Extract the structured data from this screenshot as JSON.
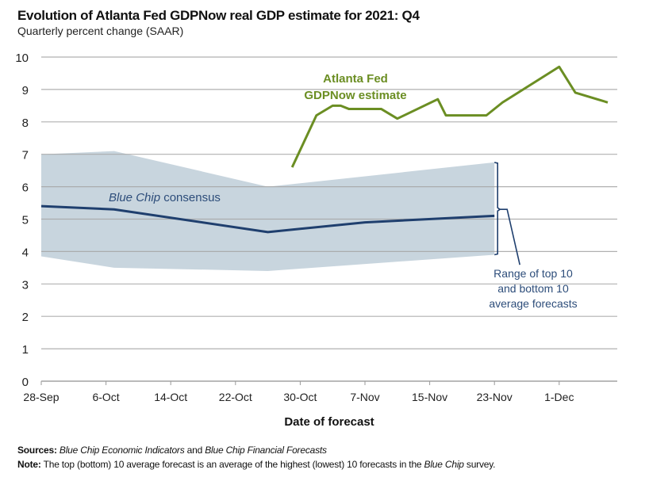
{
  "chart_data": {
    "type": "line",
    "title": "Evolution of Atlanta Fed GDPNow real GDP estimate for 2021: Q4",
    "subtitle": "Quarterly percent change (SAAR)",
    "xlabel": "Date of forecast",
    "ylabel": "",
    "ylim": [
      0,
      10
    ],
    "yticks": [
      "0",
      "1",
      "2",
      "3",
      "4",
      "5",
      "6",
      "7",
      "8",
      "9",
      "10"
    ],
    "x_range_days": [
      0,
      72
    ],
    "x_origin": "28-Sep",
    "xticks": [
      {
        "label": "28-Sep",
        "day": 0
      },
      {
        "label": "6-Oct",
        "day": 8
      },
      {
        "label": "14-Oct",
        "day": 16
      },
      {
        "label": "22-Oct",
        "day": 24
      },
      {
        "label": "30-Oct",
        "day": 32
      },
      {
        "label": "7-Nov",
        "day": 40
      },
      {
        "label": "15-Nov",
        "day": 48
      },
      {
        "label": "23-Nov",
        "day": 56
      },
      {
        "label": "1-Dec",
        "day": 64
      }
    ],
    "grid": true,
    "series": [
      {
        "name": "Atlanta Fed GDPNow estimate",
        "type": "line",
        "color": "#6b8e23",
        "x_days": [
          31,
          34,
          36,
          37,
          38,
          42,
          44,
          49,
          50,
          55,
          57,
          64,
          66,
          70
        ],
        "values": [
          6.6,
          8.2,
          8.5,
          8.5,
          8.4,
          8.4,
          8.1,
          8.7,
          8.2,
          8.2,
          8.6,
          9.7,
          8.9,
          8.6
        ]
      },
      {
        "name": "Blue Chip consensus",
        "type": "line",
        "color": "#1f3f6e",
        "x_days": [
          0,
          9,
          28,
          40,
          56
        ],
        "values": [
          5.4,
          5.3,
          4.6,
          4.9,
          5.1
        ]
      },
      {
        "name": "Range of top 10 and bottom 10 average forecasts",
        "type": "area-band",
        "color": "#c5d3dc",
        "x_days": [
          0,
          9,
          28,
          56
        ],
        "upper": [
          7.0,
          7.1,
          6.0,
          6.75
        ],
        "lower": [
          3.85,
          3.5,
          3.4,
          3.9
        ]
      }
    ],
    "annotations": {
      "gdpnow_label": [
        "Atlanta Fed",
        "GDPNow estimate"
      ],
      "consensus_label_italic": "Blue Chip",
      "consensus_label_rest": " consensus",
      "range_label": [
        "Range of top 10",
        "and bottom 10",
        "average forecasts"
      ]
    }
  },
  "footer": {
    "sources_label": "Sources:",
    "sources_italic_1": "Blue Chip Economic Indicators",
    "sources_mid": " and ",
    "sources_italic_2": "Blue Chip Financial Forecasts",
    "note_label": "Note:",
    "note_text": " The top (bottom) 10 average forecast is an average of the highest (lowest) 10 forecasts in the ",
    "note_italic": "Blue Chip",
    "note_end": " survey."
  }
}
